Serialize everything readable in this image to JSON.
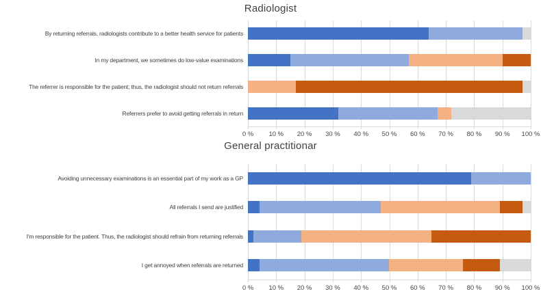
{
  "figure": {
    "background": "#ffffff",
    "gridline_color": "#d9d9d9",
    "title_color": "#3f3f3f",
    "label_color": "#3f3f3f"
  },
  "chart_data": [
    {
      "type": "bar",
      "stacked": true,
      "orientation": "horizontal",
      "title": "Radiologist",
      "unit": "%",
      "xlim": [
        0,
        100
      ],
      "grid": true,
      "legend": false,
      "x_ticks": [
        "0 %",
        "10 %",
        "20 %",
        "30 %",
        "40 %",
        "50 %",
        "60 %",
        "70 %",
        "80 %",
        "90 %",
        "100 %"
      ],
      "categories": [
        "By returning referrals, radiologists contribute to a better health service for patients",
        "In my department, we sometimes do low-value examinations",
        "The referrer is responsible for the patient; thus, the radiologist should not return referrals",
        "Referrers prefer to avoid getting referrals in return"
      ],
      "series": [
        {
          "name": "dark-blue",
          "color": "#4472C4",
          "values": [
            64,
            15,
            0,
            32
          ]
        },
        {
          "name": "light-blue",
          "color": "#8FAADC",
          "values": [
            33,
            42,
            0,
            35
          ]
        },
        {
          "name": "light-orange",
          "color": "#F4B183",
          "values": [
            0,
            33,
            17,
            5
          ]
        },
        {
          "name": "dark-orange",
          "color": "#C55A11",
          "values": [
            0,
            10,
            80,
            0
          ]
        },
        {
          "name": "gray",
          "color": "#D9D9D9",
          "values": [
            3,
            0,
            3,
            28
          ]
        }
      ]
    },
    {
      "type": "bar",
      "stacked": true,
      "orientation": "horizontal",
      "title": "General practitionar",
      "unit": "%",
      "xlim": [
        0,
        100
      ],
      "grid": true,
      "legend": false,
      "x_ticks": [
        "0 %",
        "10 %",
        "20 %",
        "30 %",
        "40 %",
        "50 %",
        "60 %",
        "70 %",
        "80 %",
        "90 %",
        "100 %"
      ],
      "categories": [
        "Avoiding unnecessary examinations is an essential part of my work as a GP",
        "All referrals I send are justified",
        "I'm responsible for the patient. Thus, the radiologist should refrain from returning referrals",
        "I get annoyed when referrals are returned"
      ],
      "series": [
        {
          "name": "dark-blue",
          "color": "#4472C4",
          "values": [
            79,
            4,
            2,
            4
          ]
        },
        {
          "name": "light-blue",
          "color": "#8FAADC",
          "values": [
            21,
            43,
            17,
            46
          ]
        },
        {
          "name": "light-orange",
          "color": "#F4B183",
          "values": [
            0,
            42,
            46,
            26
          ]
        },
        {
          "name": "dark-orange",
          "color": "#C55A11",
          "values": [
            0,
            8,
            35,
            13
          ]
        },
        {
          "name": "gray",
          "color": "#D9D9D9",
          "values": [
            0,
            3,
            0,
            11
          ]
        }
      ]
    }
  ]
}
